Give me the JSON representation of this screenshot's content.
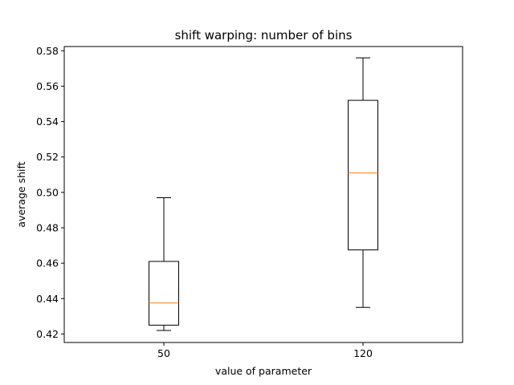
{
  "chart_data": {
    "type": "boxplot",
    "title": "shift warping: number of bins",
    "xlabel": "value of parameter",
    "ylabel": "average shift",
    "categories": [
      "50",
      "120"
    ],
    "boxes": [
      {
        "category": "50",
        "whisker_low": 0.422,
        "q1": 0.425,
        "median": 0.4375,
        "q3": 0.461,
        "whisker_high": 0.497
      },
      {
        "category": "120",
        "whisker_low": 0.435,
        "q1": 0.4675,
        "median": 0.511,
        "q3": 0.552,
        "whisker_high": 0.576
      }
    ],
    "ylim": [
      0.4152,
      0.5824
    ],
    "yticks": [
      "0.42",
      "0.44",
      "0.46",
      "0.48",
      "0.50",
      "0.52",
      "0.54",
      "0.56",
      "0.58"
    ],
    "grid": false,
    "colors": {
      "box": "#000000",
      "median": "#ff7f0e",
      "background": "#ffffff"
    }
  }
}
